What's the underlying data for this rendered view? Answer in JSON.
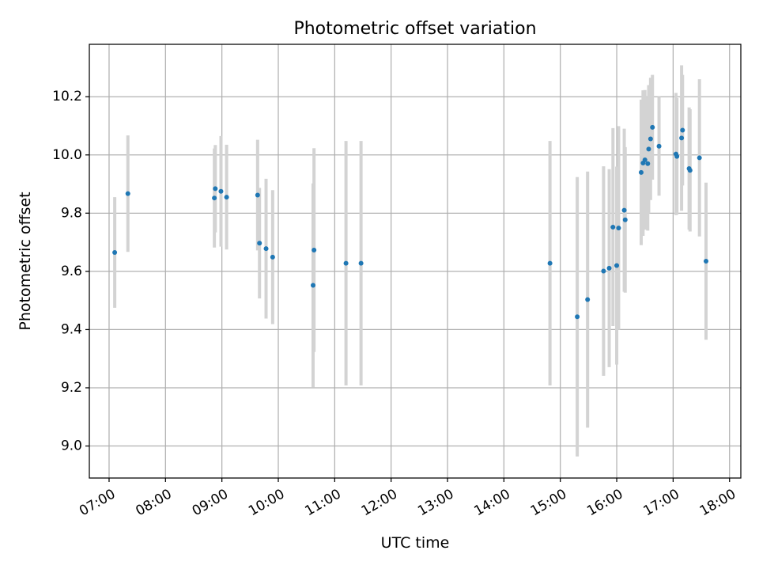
{
  "chart_data": {
    "type": "scatter",
    "title": "Photometric offset variation",
    "xlabel": "UTC time",
    "ylabel": "Photometric offset",
    "x_ticks": [
      "07:00",
      "08:00",
      "09:00",
      "10:00",
      "11:00",
      "12:00",
      "13:00",
      "14:00",
      "15:00",
      "16:00",
      "17:00",
      "18:00"
    ],
    "y_ticks": [
      "9.0",
      "9.2",
      "9.4",
      "9.6",
      "9.8",
      "10.0",
      "10.2"
    ],
    "xlim": [
      "06:39",
      "18:12"
    ],
    "ylim": [
      8.89,
      10.38
    ],
    "grid": true,
    "colors": {
      "point": "#1f77b4",
      "errorbar": "#d3d3d3",
      "grid": "#b0b0b0"
    },
    "series": [
      {
        "points": [
          {
            "x": "07:06",
            "y": 9.665,
            "err": 0.19
          },
          {
            "x": "07:20",
            "y": 9.867,
            "err": 0.2
          },
          {
            "x": "08:52",
            "y": 9.852,
            "err": 0.17
          },
          {
            "x": "08:53",
            "y": 9.884,
            "err": 0.15
          },
          {
            "x": "08:59",
            "y": 9.875,
            "err": 0.19
          },
          {
            "x": "09:05",
            "y": 9.855,
            "err": 0.18
          },
          {
            "x": "09:38",
            "y": 9.862,
            "err": 0.19
          },
          {
            "x": "09:40",
            "y": 9.697,
            "err": 0.19
          },
          {
            "x": "09:47",
            "y": 9.678,
            "err": 0.24
          },
          {
            "x": "09:54",
            "y": 9.649,
            "err": 0.23
          },
          {
            "x": "10:37",
            "y": 9.552,
            "err": 0.35
          },
          {
            "x": "10:38",
            "y": 9.673,
            "err": 0.35
          },
          {
            "x": "11:12",
            "y": 9.628,
            "err": 0.42
          },
          {
            "x": "11:28",
            "y": 9.628,
            "err": 0.42
          },
          {
            "x": "14:49",
            "y": 9.628,
            "err": 0.42
          },
          {
            "x": "15:18",
            "y": 9.444,
            "err": 0.48
          },
          {
            "x": "15:29",
            "y": 9.503,
            "err": 0.44
          },
          {
            "x": "15:46",
            "y": 9.601,
            "err": 0.36
          },
          {
            "x": "15:52",
            "y": 9.611,
            "err": 0.34
          },
          {
            "x": "15:56",
            "y": 9.752,
            "err": 0.34
          },
          {
            "x": "16:00",
            "y": 9.62,
            "err": 0.34
          },
          {
            "x": "16:02",
            "y": 9.749,
            "err": 0.35
          },
          {
            "x": "16:08",
            "y": 9.81,
            "err": 0.28
          },
          {
            "x": "16:09",
            "y": 9.777,
            "err": 0.25
          },
          {
            "x": "16:26",
            "y": 9.94,
            "err": 0.25
          },
          {
            "x": "16:28",
            "y": 9.972,
            "err": 0.25
          },
          {
            "x": "16:30",
            "y": 9.983,
            "err": 0.24
          },
          {
            "x": "16:33",
            "y": 9.97,
            "err": 0.23
          },
          {
            "x": "16:34",
            "y": 10.02,
            "err": 0.22
          },
          {
            "x": "16:36",
            "y": 10.055,
            "err": 0.21
          },
          {
            "x": "16:38",
            "y": 10.095,
            "err": 0.18
          },
          {
            "x": "16:45",
            "y": 10.03,
            "err": 0.17
          },
          {
            "x": "17:03",
            "y": 10.003,
            "err": 0.21
          },
          {
            "x": "17:04",
            "y": 9.995,
            "err": 0.2
          },
          {
            "x": "17:09",
            "y": 10.058,
            "err": 0.25
          },
          {
            "x": "17:10",
            "y": 10.085,
            "err": 0.19
          },
          {
            "x": "17:17",
            "y": 9.953,
            "err": 0.21
          },
          {
            "x": "17:18",
            "y": 9.947,
            "err": 0.21
          },
          {
            "x": "17:28",
            "y": 9.99,
            "err": 0.27
          },
          {
            "x": "17:35",
            "y": 9.635,
            "err": 0.27
          }
        ]
      }
    ]
  }
}
